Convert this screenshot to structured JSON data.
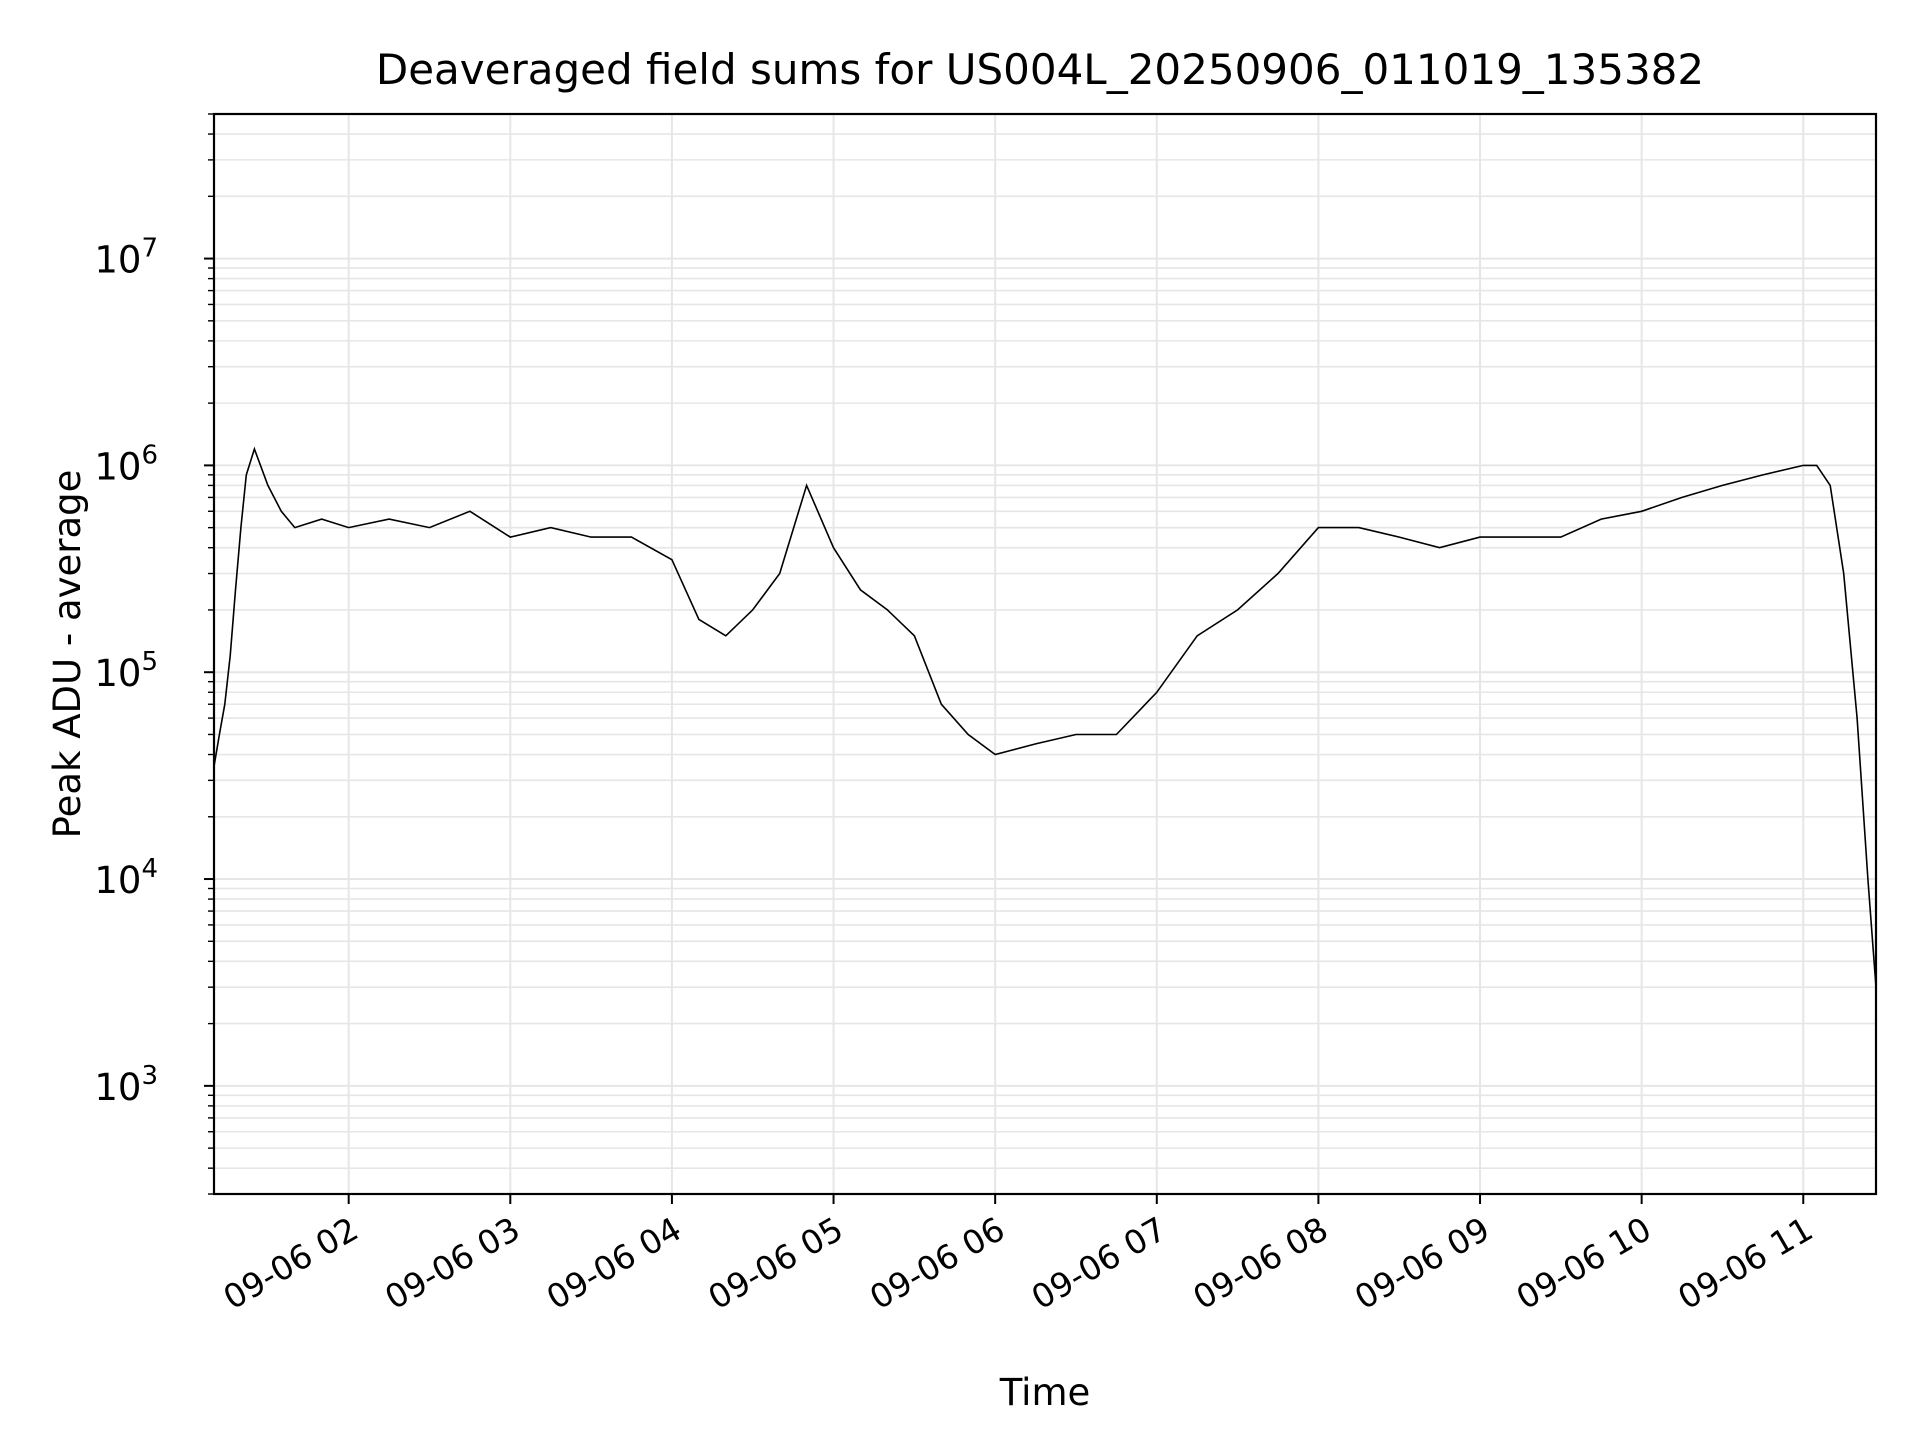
{
  "chart_data": {
    "type": "line",
    "title": "Deaveraged field sums for US004L_20250906_011019_135382",
    "xlabel": "Time",
    "ylabel": "Peak ADU - average",
    "x_tick_labels": [
      "09-06 02",
      "09-06 03",
      "09-06 04",
      "09-06 05",
      "09-06 06",
      "09-06 07",
      "09-06 08",
      "09-06 09",
      "09-06 10",
      "09-06 11"
    ],
    "x_ticks": [
      "2025-09-06 02:00",
      "2025-09-06 03:00",
      "2025-09-06 04:00",
      "2025-09-06 05:00",
      "2025-09-06 06:00",
      "2025-09-06 07:00",
      "2025-09-06 08:00",
      "2025-09-06 09:00",
      "2025-09-06 10:00",
      "2025-09-06 11:00"
    ],
    "xlim": [
      "2025-09-06 01:10",
      "2025-09-06 11:27"
    ],
    "yscale": "log",
    "ylim": [
      300,
      50000000
    ],
    "y_tick_values": [
      1000,
      10000,
      100000,
      1000000,
      10000000
    ],
    "y_tick_labels": [
      {
        "base": "10",
        "exp": "3"
      },
      {
        "base": "10",
        "exp": "4"
      },
      {
        "base": "10",
        "exp": "5"
      },
      {
        "base": "10",
        "exp": "6"
      },
      {
        "base": "10",
        "exp": "7"
      }
    ],
    "grid": "major and minor",
    "legend": "none",
    "line_color": "#000000",
    "grid_color": "#e6e6e6",
    "series": [
      {
        "x": [
          "2025-09-06 01:10",
          "2025-09-06 01:12",
          "2025-09-06 01:14",
          "2025-09-06 01:16",
          "2025-09-06 01:18",
          "2025-09-06 01:20",
          "2025-09-06 01:22",
          "2025-09-06 01:25",
          "2025-09-06 01:30",
          "2025-09-06 01:35",
          "2025-09-06 01:40",
          "2025-09-06 01:50",
          "2025-09-06 02:00",
          "2025-09-06 02:15",
          "2025-09-06 02:30",
          "2025-09-06 02:45",
          "2025-09-06 03:00",
          "2025-09-06 03:15",
          "2025-09-06 03:30",
          "2025-09-06 03:45",
          "2025-09-06 04:00",
          "2025-09-06 04:10",
          "2025-09-06 04:20",
          "2025-09-06 04:30",
          "2025-09-06 04:40",
          "2025-09-06 04:50",
          "2025-09-06 05:00",
          "2025-09-06 05:10",
          "2025-09-06 05:20",
          "2025-09-06 05:30",
          "2025-09-06 05:40",
          "2025-09-06 05:50",
          "2025-09-06 06:00",
          "2025-09-06 06:15",
          "2025-09-06 06:30",
          "2025-09-06 06:45",
          "2025-09-06 07:00",
          "2025-09-06 07:15",
          "2025-09-06 07:30",
          "2025-09-06 07:45",
          "2025-09-06 08:00",
          "2025-09-06 08:15",
          "2025-09-06 08:30",
          "2025-09-06 08:45",
          "2025-09-06 09:00",
          "2025-09-06 09:15",
          "2025-09-06 09:30",
          "2025-09-06 09:45",
          "2025-09-06 10:00",
          "2025-09-06 10:15",
          "2025-09-06 10:30",
          "2025-09-06 10:45",
          "2025-09-06 11:00",
          "2025-09-06 11:05",
          "2025-09-06 11:10",
          "2025-09-06 11:15",
          "2025-09-06 11:20",
          "2025-09-06 11:24",
          "2025-09-06 11:27"
        ],
        "y": [
          35000,
          50000,
          70000,
          120000,
          250000,
          500000,
          900000,
          1200000,
          800000,
          600000,
          500000,
          550000,
          500000,
          550000,
          500000,
          600000,
          450000,
          500000,
          450000,
          450000,
          350000,
          180000,
          150000,
          200000,
          300000,
          800000,
          400000,
          250000,
          200000,
          150000,
          70000,
          50000,
          40000,
          45000,
          50000,
          50000,
          80000,
          150000,
          200000,
          300000,
          500000,
          500000,
          450000,
          400000,
          450000,
          450000,
          450000,
          550000,
          600000,
          700000,
          800000,
          900000,
          1000000,
          1000000,
          800000,
          300000,
          60000,
          10000,
          3000
        ]
      }
    ]
  }
}
